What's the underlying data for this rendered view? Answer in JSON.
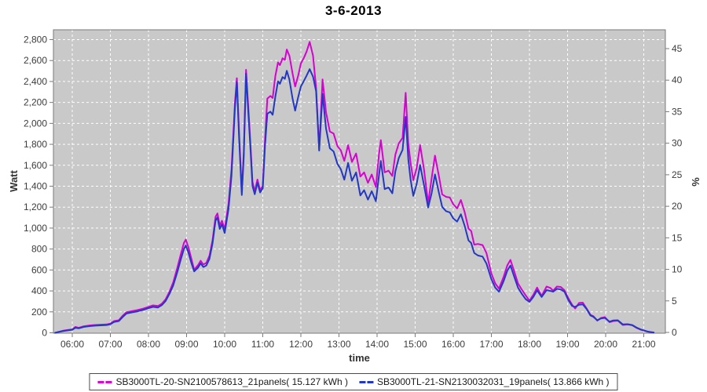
{
  "title": "3-6-2013",
  "colors": {
    "series_magenta": "#d800d2",
    "series_blue": "#2238c4",
    "plot_background": "#c9c9c9",
    "grid_line": "#ffffff",
    "plot_border": "#7a7a7a",
    "tick_label": "#3c3c3c",
    "page_background": "#ffffff"
  },
  "legend": {
    "items": [
      {
        "label": "SB3000TL-20-SN2100578613_21panels( 15.127 kWh )",
        "color": "#d800d2"
      },
      {
        "label": "SB3000TL-21-SN2130032031_19panels( 13.866 kWh )",
        "color": "#2238c4"
      }
    ]
  },
  "chart_data": {
    "type": "line",
    "title": "3-6-2013",
    "xlabel": "time",
    "ylabel_left": "Watt",
    "ylabel_right": "%",
    "grid": {
      "show": true,
      "style": "dashed",
      "color": "#ffffff"
    },
    "plot_background": "#c9c9c9",
    "legend_position": "bottom",
    "x_axis": {
      "unit": "hour-of-day",
      "range_hours": [
        5.5,
        21.5
      ],
      "tick_hours": [
        6,
        7,
        8,
        9,
        10,
        11,
        12,
        13,
        14,
        15,
        16,
        17,
        18,
        19,
        20,
        21
      ],
      "tick_labels": [
        "06:00",
        "07:00",
        "08:00",
        "09:00",
        "10:00",
        "11:00",
        "12:00",
        "13:00",
        "14:00",
        "15:00",
        "16:00",
        "17:00",
        "18:00",
        "19:00",
        "20:00",
        "21:00"
      ]
    },
    "y_left": {
      "unit": "Watt",
      "range": [
        0,
        2890
      ],
      "tick_values": [
        0,
        200,
        400,
        600,
        800,
        1000,
        1200,
        1400,
        1600,
        1800,
        2000,
        2200,
        2400,
        2600,
        2800
      ],
      "tick_labels": [
        "0",
        "200",
        "400",
        "600",
        "800",
        "1,000",
        "1,200",
        "1,400",
        "1,600",
        "1,800",
        "2,000",
        "2,200",
        "2,400",
        "2,600",
        "2,800"
      ]
    },
    "y_right": {
      "unit": "%",
      "range": [
        0,
        48
      ],
      "tick_values": [
        0,
        5,
        10,
        15,
        20,
        25,
        30,
        35,
        40,
        45
      ],
      "tick_labels": [
        "0",
        "5",
        "10",
        "15",
        "20",
        "25",
        "30",
        "35",
        "40",
        "45"
      ]
    },
    "x_hours": [
      5.55,
      5.65,
      5.78,
      5.9,
      6.0,
      6.08,
      6.17,
      6.3,
      6.45,
      6.6,
      6.75,
      6.9,
      7.0,
      7.1,
      7.22,
      7.32,
      7.42,
      7.55,
      7.7,
      7.85,
      8.0,
      8.12,
      8.25,
      8.35,
      8.45,
      8.55,
      8.65,
      8.75,
      8.85,
      8.93,
      8.98,
      9.05,
      9.13,
      9.2,
      9.3,
      9.37,
      9.44,
      9.52,
      9.6,
      9.68,
      9.76,
      9.81,
      9.87,
      9.93,
      10.0,
      10.1,
      10.18,
      10.27,
      10.32,
      10.38,
      10.45,
      10.5,
      10.56,
      10.62,
      10.67,
      10.73,
      10.79,
      10.86,
      10.93,
      11.0,
      11.06,
      11.12,
      11.2,
      11.26,
      11.33,
      11.4,
      11.45,
      11.52,
      11.58,
      11.63,
      11.7,
      11.78,
      11.85,
      11.93,
      12.0,
      12.08,
      12.15,
      12.23,
      12.32,
      12.4,
      12.48,
      12.57,
      12.66,
      12.76,
      12.86,
      12.96,
      13.05,
      13.14,
      13.24,
      13.34,
      13.45,
      13.56,
      13.66,
      13.76,
      13.86,
      13.97,
      14.05,
      14.1,
      14.2,
      14.3,
      14.4,
      14.48,
      14.57,
      14.67,
      14.75,
      14.82,
      14.88,
      14.95,
      15.04,
      15.13,
      15.23,
      15.34,
      15.43,
      15.52,
      15.62,
      15.71,
      15.81,
      15.91,
      16.0,
      16.1,
      16.2,
      16.3,
      16.4,
      16.47,
      16.55,
      16.65,
      16.77,
      16.87,
      17.0,
      17.1,
      17.2,
      17.32,
      17.42,
      17.5,
      17.6,
      17.7,
      17.8,
      17.9,
      18.0,
      18.1,
      18.2,
      18.32,
      18.45,
      18.55,
      18.62,
      18.72,
      18.82,
      18.92,
      19.02,
      19.12,
      19.2,
      19.3,
      19.4,
      19.5,
      19.6,
      19.68,
      19.78,
      19.88,
      19.98,
      20.1,
      20.2,
      20.32,
      20.45,
      20.58,
      20.7,
      20.82,
      20.92,
      21.02,
      21.1,
      21.2,
      21.26
    ],
    "series": [
      {
        "name": "SB3000TL-20-SN2100578613_21panels( 15.127 kWh )",
        "color": "#d800d2",
        "total_kwh": "15.127",
        "values": [
          0,
          10,
          22,
          28,
          33,
          56,
          48,
          62,
          70,
          75,
          78,
          80,
          88,
          112,
          120,
          162,
          196,
          206,
          216,
          230,
          248,
          262,
          256,
          278,
          320,
          392,
          482,
          612,
          752,
          858,
          890,
          815,
          702,
          602,
          646,
          688,
          652,
          668,
          736,
          882,
          1108,
          1140,
          1026,
          1070,
          988,
          1232,
          1562,
          2200,
          2432,
          1902,
          1346,
          1722,
          2512,
          2152,
          1846,
          1442,
          1350,
          1464,
          1362,
          1402,
          1852,
          2236,
          2262,
          2242,
          2452,
          2582,
          2556,
          2622,
          2606,
          2706,
          2646,
          2482,
          2352,
          2456,
          2572,
          2626,
          2686,
          2778,
          2646,
          2336,
          1752,
          2420,
          2106,
          1922,
          1902,
          1782,
          1742,
          1642,
          1792,
          1632,
          1712,
          1492,
          1532,
          1432,
          1512,
          1392,
          1702,
          1840,
          1532,
          1548,
          1498,
          1702,
          1808,
          1862,
          2292,
          1802,
          1622,
          1458,
          1572,
          1792,
          1562,
          1238,
          1472,
          1692,
          1502,
          1322,
          1298,
          1292,
          1228,
          1188,
          1268,
          1152,
          996,
          972,
          842,
          848,
          838,
          762,
          566,
          472,
          422,
          532,
          646,
          696,
          586,
          472,
          412,
          358,
          308,
          362,
          432,
          352,
          442,
          428,
          402,
          442,
          438,
          406,
          330,
          268,
          232,
          285,
          288,
          232,
          172,
          158,
          116,
          142,
          150,
          102,
          112,
          116,
          75,
          80,
          72,
          45,
          30,
          20,
          13,
          5,
          3
        ]
      },
      {
        "name": "SB3000TL-21-SN2130032031_19panels( 13.866 kWh )",
        "color": "#2238c4",
        "total_kwh": "13.866",
        "values": [
          0,
          8,
          18,
          24,
          29,
          48,
          43,
          56,
          64,
          68,
          71,
          74,
          82,
          104,
          112,
          150,
          184,
          194,
          204,
          218,
          236,
          248,
          242,
          264,
          304,
          372,
          452,
          572,
          702,
          800,
          834,
          766,
          662,
          586,
          622,
          663,
          628,
          643,
          706,
          852,
          1072,
          1102,
          992,
          1036,
          953,
          1182,
          1502,
          2152,
          2396,
          1852,
          1316,
          1682,
          2476,
          2102,
          1802,
          1402,
          1324,
          1434,
          1340,
          1380,
          1792,
          2092,
          2112,
          2082,
          2256,
          2402,
          2378,
          2442,
          2426,
          2502,
          2418,
          2242,
          2122,
          2252,
          2352,
          2406,
          2456,
          2518,
          2446,
          2306,
          1740,
          2282,
          1952,
          1762,
          1732,
          1612,
          1562,
          1462,
          1622,
          1452,
          1532,
          1312,
          1362,
          1272,
          1352,
          1256,
          1502,
          1642,
          1372,
          1388,
          1332,
          1542,
          1668,
          1748,
          2062,
          1652,
          1462,
          1308,
          1422,
          1602,
          1412,
          1196,
          1332,
          1512,
          1342,
          1202,
          1162,
          1150,
          1092,
          1062,
          1132,
          1022,
          882,
          858,
          762,
          738,
          728,
          662,
          512,
          432,
          392,
          492,
          596,
          642,
          536,
          432,
          372,
          322,
          296,
          342,
          406,
          342,
          408,
          400,
          392,
          420,
          414,
          392,
          312,
          256,
          248,
          268,
          272,
          226,
          166,
          152,
          120,
          138,
          142,
          106,
          118,
          120,
          80,
          82,
          74,
          48,
          32,
          21,
          11,
          6,
          3
        ]
      }
    ]
  }
}
